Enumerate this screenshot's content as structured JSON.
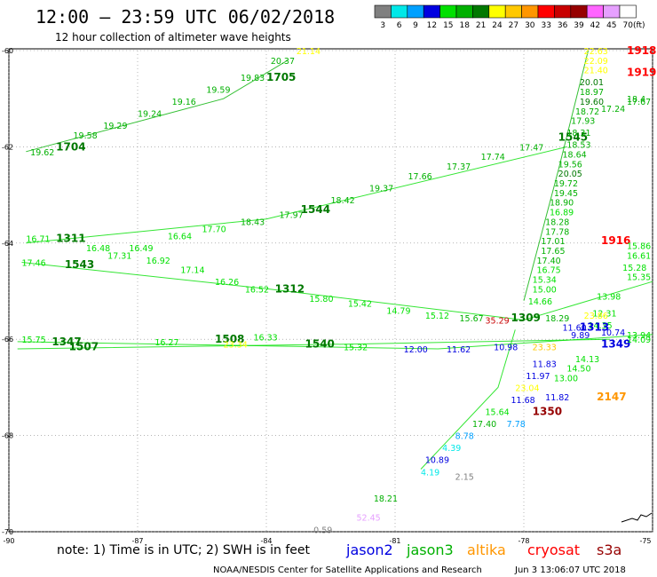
{
  "header": {
    "title": "12:00 – 23:59 UTC 06/02/2018",
    "subtitle": "12 hour collection of altimeter wave heights"
  },
  "legend": {
    "unit": "(ft)",
    "bins": [
      {
        "label": "3",
        "color": "#808080"
      },
      {
        "label": "6",
        "color": "#00e8e8"
      },
      {
        "label": "9",
        "color": "#00a0ff"
      },
      {
        "label": "12",
        "color": "#0000e0"
      },
      {
        "label": "15",
        "color": "#00e000"
      },
      {
        "label": "18",
        "color": "#00b000"
      },
      {
        "label": "21",
        "color": "#007800"
      },
      {
        "label": "24",
        "color": "#ffff00"
      },
      {
        "label": "27",
        "color": "#ffc800"
      },
      {
        "label": "30",
        "color": "#ff9600"
      },
      {
        "label": "33",
        "color": "#ff0000"
      },
      {
        "label": "36",
        "color": "#c80000"
      },
      {
        "label": "39",
        "color": "#960000"
      },
      {
        "label": "42",
        "color": "#ff64ff"
      },
      {
        "label": "45",
        "color": "#e6a0ff"
      },
      {
        "label": "70",
        "color": "#ffffff"
      }
    ]
  },
  "axes": {
    "lat_labels": [
      "-60",
      "-62",
      "-64",
      "-66",
      "-68",
      "-70"
    ],
    "lon_labels": [
      "-90",
      "-87",
      "-84",
      "-81",
      "-78",
      "-75"
    ]
  },
  "chart_data": {
    "type": "scatter",
    "region": {
      "lon_range": [
        -90,
        -75
      ],
      "lat_range": [
        -70,
        -60
      ]
    },
    "points": [
      {
        "lon": -89.5,
        "lat": -62.1,
        "label": "19.62",
        "color": "#00b000"
      },
      {
        "lon": -88.9,
        "lat": -62.0,
        "label": "1704",
        "color": "#007800",
        "bold": true
      },
      {
        "lon": -88.5,
        "lat": -61.75,
        "label": "19.58",
        "color": "#00b000"
      },
      {
        "lon": -87.8,
        "lat": -61.55,
        "label": "19.29",
        "color": "#00b000"
      },
      {
        "lon": -87.0,
        "lat": -61.3,
        "label": "19.24",
        "color": "#00b000"
      },
      {
        "lon": -86.2,
        "lat": -61.05,
        "label": "19.16",
        "color": "#00b000"
      },
      {
        "lon": -85.4,
        "lat": -60.8,
        "label": "19.59",
        "color": "#00b000"
      },
      {
        "lon": -84.6,
        "lat": -60.55,
        "label": "19.83",
        "color": "#00b000"
      },
      {
        "lon": -84.0,
        "lat": -60.55,
        "label": "1705",
        "color": "#007800",
        "bold": true
      },
      {
        "lon": -83.9,
        "lat": -60.2,
        "label": "20.37",
        "color": "#00b000"
      },
      {
        "lon": -83.3,
        "lat": -60.0,
        "label": "21.14",
        "color": "#ffff00"
      },
      {
        "lon": -89.6,
        "lat": -63.9,
        "label": "16.71",
        "color": "#00e000"
      },
      {
        "lon": -88.9,
        "lat": -63.9,
        "label": "1311",
        "color": "#007800",
        "bold": true
      },
      {
        "lon": -88.2,
        "lat": -64.1,
        "label": "16.48",
        "color": "#00e000"
      },
      {
        "lon": -87.2,
        "lat": -64.1,
        "label": "16.49",
        "color": "#00e000"
      },
      {
        "lon": -86.3,
        "lat": -63.85,
        "label": "16.64",
        "color": "#00e000"
      },
      {
        "lon": -85.5,
        "lat": -63.7,
        "label": "17.70",
        "color": "#00e000"
      },
      {
        "lon": -84.6,
        "lat": -63.55,
        "label": "18.43",
        "color": "#00b000"
      },
      {
        "lon": -83.7,
        "lat": -63.4,
        "label": "17.97",
        "color": "#00b000"
      },
      {
        "lon": -83.2,
        "lat": -63.3,
        "label": "1544",
        "color": "#007800",
        "bold": true
      },
      {
        "lon": -82.5,
        "lat": -63.1,
        "label": "18.42",
        "color": "#00b000"
      },
      {
        "lon": -81.6,
        "lat": -62.85,
        "label": "19.37",
        "color": "#00b000"
      },
      {
        "lon": -80.7,
        "lat": -62.6,
        "label": "17.66",
        "color": "#00b000"
      },
      {
        "lon": -79.8,
        "lat": -62.4,
        "label": "17.37",
        "color": "#00b000"
      },
      {
        "lon": -79.0,
        "lat": -62.2,
        "label": "17.74",
        "color": "#00b000"
      },
      {
        "lon": -78.1,
        "lat": -62.0,
        "label": "17.47",
        "color": "#00b000"
      },
      {
        "lon": -77.2,
        "lat": -61.8,
        "label": "1545",
        "color": "#007800",
        "bold": true
      },
      {
        "lon": -89.7,
        "lat": -64.4,
        "label": "17.46",
        "color": "#00e000"
      },
      {
        "lon": -88.7,
        "lat": -64.45,
        "label": "1543",
        "color": "#007800",
        "bold": true
      },
      {
        "lon": -87.7,
        "lat": -64.25,
        "label": "17.31",
        "color": "#00e000"
      },
      {
        "lon": -86.8,
        "lat": -64.35,
        "label": "16.92",
        "color": "#00e000"
      },
      {
        "lon": -86.0,
        "lat": -64.55,
        "label": "17.14",
        "color": "#00e000"
      },
      {
        "lon": -85.2,
        "lat": -64.8,
        "label": "16.26",
        "color": "#00e000"
      },
      {
        "lon": -84.5,
        "lat": -64.95,
        "label": "16.52",
        "color": "#00e000"
      },
      {
        "lon": -83.8,
        "lat": -64.95,
        "label": "1312",
        "color": "#007800",
        "bold": true
      },
      {
        "lon": -83.0,
        "lat": -65.15,
        "label": "15.80",
        "color": "#00e000"
      },
      {
        "lon": -82.1,
        "lat": -65.25,
        "label": "15.42",
        "color": "#00e000"
      },
      {
        "lon": -81.2,
        "lat": -65.4,
        "label": "14.79",
        "color": "#00e000"
      },
      {
        "lon": -80.3,
        "lat": -65.5,
        "label": "15.12",
        "color": "#00e000"
      },
      {
        "lon": -79.5,
        "lat": -65.55,
        "label": "15.67",
        "color": "#00b000"
      },
      {
        "lon": -78.9,
        "lat": -65.6,
        "label": "35.29",
        "color": "#c80000"
      },
      {
        "lon": -78.3,
        "lat": -65.55,
        "label": "1309",
        "color": "#007800",
        "bold": true
      },
      {
        "lon": -89.7,
        "lat": -66.0,
        "label": "15.75",
        "color": "#00e000"
      },
      {
        "lon": -89.0,
        "lat": -66.05,
        "label": "1347",
        "color": "#007800",
        "bold": true
      },
      {
        "lon": -88.6,
        "lat": -66.15,
        "label": "1507",
        "color": "#007800",
        "bold": true
      },
      {
        "lon": -86.6,
        "lat": -66.05,
        "label": "16.27",
        "color": "#00e000"
      },
      {
        "lon": -85.2,
        "lat": -66.0,
        "label": "1508",
        "color": "#007800",
        "bold": true
      },
      {
        "lon": -84.3,
        "lat": -65.95,
        "label": "16.33",
        "color": "#00e000"
      },
      {
        "lon": -83.1,
        "lat": -66.1,
        "label": "1540",
        "color": "#007800",
        "bold": true
      },
      {
        "lon": -82.2,
        "lat": -66.15,
        "label": "15.32",
        "color": "#00e000"
      },
      {
        "lon": -80.8,
        "lat": -66.2,
        "label": "12.00",
        "color": "#0000e0"
      },
      {
        "lon": -79.8,
        "lat": -66.2,
        "label": "11.62",
        "color": "#0000e0"
      },
      {
        "lon": -78.7,
        "lat": -66.15,
        "label": "10.98",
        "color": "#0000e0"
      },
      {
        "lon": -77.8,
        "lat": -66.15,
        "label": "23.33",
        "color": "#ffc800"
      },
      {
        "lon": -76.2,
        "lat": -66.1,
        "label": "1349",
        "color": "#0000e0",
        "bold": true
      },
      {
        "lon": -75.2,
        "lat": -66.0,
        "label": "14.09",
        "color": "#00e000"
      },
      {
        "lon": -85.0,
        "lat": -66.1,
        "label": "23.34",
        "color": "#ffff00"
      },
      {
        "lon": -76.6,
        "lat": -60.0,
        "label": "22.63",
        "color": "#ffff00"
      },
      {
        "lon": -76.6,
        "lat": -60.2,
        "label": "22.09",
        "color": "#ffff00"
      },
      {
        "lon": -76.6,
        "lat": -60.4,
        "label": "21.40",
        "color": "#ffff00"
      },
      {
        "lon": -76.7,
        "lat": -60.65,
        "label": "20.01",
        "color": "#007800"
      },
      {
        "lon": -76.7,
        "lat": -60.85,
        "label": "18.97",
        "color": "#00b000"
      },
      {
        "lon": -76.7,
        "lat": -61.05,
        "label": "19.60",
        "color": "#007800"
      },
      {
        "lon": -76.8,
        "lat": -61.25,
        "label": "18.72",
        "color": "#00b000"
      },
      {
        "lon": -76.9,
        "lat": -61.45,
        "label": "17.93",
        "color": "#00b000"
      },
      {
        "lon": -77.0,
        "lat": -61.7,
        "label": "18.31",
        "color": "#00b000"
      },
      {
        "lon": -77.0,
        "lat": -61.95,
        "label": "18.53",
        "color": "#00b000"
      },
      {
        "lon": -77.1,
        "lat": -62.15,
        "label": "18.64",
        "color": "#00b000"
      },
      {
        "lon": -77.2,
        "lat": -62.35,
        "label": "19.56",
        "color": "#00b000"
      },
      {
        "lon": -77.2,
        "lat": -62.55,
        "label": "20.05",
        "color": "#007800"
      },
      {
        "lon": -77.3,
        "lat": -62.75,
        "label": "19.72",
        "color": "#00b000"
      },
      {
        "lon": -77.3,
        "lat": -62.95,
        "label": "19.45",
        "color": "#00b000"
      },
      {
        "lon": -77.4,
        "lat": -63.15,
        "label": "18.90",
        "color": "#00b000"
      },
      {
        "lon": -77.4,
        "lat": -63.35,
        "label": "16.89",
        "color": "#00e000"
      },
      {
        "lon": -77.5,
        "lat": -63.55,
        "label": "18.28",
        "color": "#00b000"
      },
      {
        "lon": -77.5,
        "lat": -63.75,
        "label": "17.78",
        "color": "#00b000"
      },
      {
        "lon": -77.6,
        "lat": -63.95,
        "label": "17.01",
        "color": "#00b000"
      },
      {
        "lon": -77.6,
        "lat": -64.15,
        "label": "17.65",
        "color": "#00b000"
      },
      {
        "lon": -77.7,
        "lat": -64.35,
        "label": "17.40",
        "color": "#00b000"
      },
      {
        "lon": -77.7,
        "lat": -64.55,
        "label": "16.75",
        "color": "#00e000"
      },
      {
        "lon": -77.8,
        "lat": -64.75,
        "label": "15.34",
        "color": "#00e000"
      },
      {
        "lon": -77.8,
        "lat": -64.95,
        "label": "15.00",
        "color": "#00e000"
      },
      {
        "lon": -77.9,
        "lat": -65.2,
        "label": "14.66",
        "color": "#00e000"
      },
      {
        "lon": -77.5,
        "lat": -65.55,
        "label": "18.29",
        "color": "#00b000"
      },
      {
        "lon": -77.1,
        "lat": -65.75,
        "label": "11.60",
        "color": "#0000e0"
      },
      {
        "lon": -77.8,
        "lat": -66.5,
        "label": "11.83",
        "color": "#0000e0"
      },
      {
        "lon": -77.95,
        "lat": -66.75,
        "label": "11.97",
        "color": "#0000e0"
      },
      {
        "lon": -78.2,
        "lat": -67.0,
        "label": "23.04",
        "color": "#ffff00"
      },
      {
        "lon": -78.3,
        "lat": -67.25,
        "label": "11.68",
        "color": "#0000e0"
      },
      {
        "lon": -77.3,
        "lat": -66.8,
        "label": "13.00",
        "color": "#00e000"
      },
      {
        "lon": -77.0,
        "lat": -66.6,
        "label": "14.50",
        "color": "#00e000"
      },
      {
        "lon": -76.8,
        "lat": -66.4,
        "label": "14.13",
        "color": "#00e000"
      },
      {
        "lon": -77.5,
        "lat": -67.2,
        "label": "11.82",
        "color": "#0000e0"
      },
      {
        "lon": -76.3,
        "lat": -67.2,
        "label": "2147",
        "color": "#ff9600",
        "bold": true
      },
      {
        "lon": -78.9,
        "lat": -67.5,
        "label": "15.64",
        "color": "#00e000"
      },
      {
        "lon": -77.8,
        "lat": -67.5,
        "label": "1350",
        "color": "#960000",
        "bold": true
      },
      {
        "lon": -79.2,
        "lat": -67.75,
        "label": "17.40",
        "color": "#00b000"
      },
      {
        "lon": -78.4,
        "lat": -67.75,
        "label": "7.78",
        "color": "#00a0ff"
      },
      {
        "lon": -79.6,
        "lat": -68.0,
        "label": "8.78",
        "color": "#00a0ff"
      },
      {
        "lon": -79.9,
        "lat": -68.25,
        "label": "4.39",
        "color": "#00e8e8"
      },
      {
        "lon": -80.3,
        "lat": -68.5,
        "label": "10.89",
        "color": "#0000e0"
      },
      {
        "lon": -80.4,
        "lat": -68.75,
        "label": "4.19",
        "color": "#00e8e8"
      },
      {
        "lon": -79.6,
        "lat": -68.85,
        "label": "2.15",
        "color": "#808080"
      },
      {
        "lon": -81.5,
        "lat": -69.3,
        "label": "18.21",
        "color": "#00b000"
      },
      {
        "lon": -81.9,
        "lat": -69.7,
        "label": "52.45",
        "color": "#e6a0ff"
      },
      {
        "lon": -82.9,
        "lat": -69.95,
        "label": "0.59",
        "color": "#808080"
      },
      {
        "lon": -76.2,
        "lat": -63.95,
        "label": "1916",
        "color": "#ff0000",
        "bold": true
      },
      {
        "lon": -75.4,
        "lat": -60.0,
        "label": "1918",
        "color": "#ff0000",
        "bold": true
      },
      {
        "lon": -75.3,
        "lat": -60.45,
        "label": "1919",
        "color": "#ff0000",
        "bold": true
      },
      {
        "lon": -75.6,
        "lat": -61.05,
        "label": "17.67",
        "color": "#00b000"
      },
      {
        "lon": -76.2,
        "lat": -61.2,
        "label": "17.24",
        "color": "#00b000"
      },
      {
        "lon": -75.2,
        "lat": -61.0,
        "label": "18.4",
        "color": "#00b000"
      },
      {
        "lon": -75.3,
        "lat": -64.05,
        "label": "15.86",
        "color": "#00e000"
      },
      {
        "lon": -75.5,
        "lat": -64.25,
        "label": "16.61",
        "color": "#00e000"
      },
      {
        "lon": -75.7,
        "lat": -64.5,
        "label": "15.28",
        "color": "#00e000"
      },
      {
        "lon": -75.3,
        "lat": -64.7,
        "label": "15.35",
        "color": "#00e000"
      },
      {
        "lon": -76.3,
        "lat": -65.1,
        "label": "13.98",
        "color": "#00e000"
      },
      {
        "lon": -76.4,
        "lat": -65.45,
        "label": "12.31",
        "color": "#00e000"
      },
      {
        "lon": -76.5,
        "lat": -65.7,
        "label": "14.35",
        "color": "#00e000"
      },
      {
        "lon": -76.2,
        "lat": -65.85,
        "label": "10.74",
        "color": "#0000e0"
      },
      {
        "lon": -75.6,
        "lat": -65.9,
        "label": "13.94",
        "color": "#00e000"
      },
      {
        "lon": -76.6,
        "lat": -65.5,
        "label": "23.86",
        "color": "#ffff00"
      },
      {
        "lon": -76.9,
        "lat": -65.9,
        "label": "9.89",
        "color": "#0000e0"
      },
      {
        "lon": -76.7,
        "lat": -65.75,
        "label": "1313",
        "color": "#0000e0",
        "bold": true
      }
    ]
  },
  "tracks": [
    {
      "color": "#00b000",
      "points": [
        [
          -89.6,
          -62.1
        ],
        [
          -85,
          -61
        ],
        [
          -83.5,
          -60.2
        ]
      ]
    },
    {
      "color": "#00e000",
      "points": [
        [
          -89.6,
          -64.0
        ],
        [
          -84,
          -63.5
        ],
        [
          -77,
          -62.0
        ]
      ]
    },
    {
      "color": "#00e000",
      "points": [
        [
          -89.7,
          -64.4
        ],
        [
          -84,
          -64.95
        ],
        [
          -78,
          -65.6
        ],
        [
          -75,
          -64.8
        ]
      ]
    },
    {
      "color": "#00e000",
      "points": [
        [
          -89.8,
          -66.05
        ],
        [
          -80,
          -66.2
        ],
        [
          -75,
          -65.9
        ]
      ]
    },
    {
      "color": "#00e000",
      "points": [
        [
          -89.8,
          -66.2
        ],
        [
          -82,
          -66.1
        ],
        [
          -76,
          -66.0
        ]
      ]
    },
    {
      "color": "#00b000",
      "points": [
        [
          -76.5,
          -60.0
        ],
        [
          -77.2,
          -62.5
        ],
        [
          -78,
          -65.2
        ]
      ]
    },
    {
      "color": "#00e000",
      "points": [
        [
          -78.2,
          -65.8
        ],
        [
          -78.6,
          -67.0
        ],
        [
          -80.4,
          -68.7
        ]
      ]
    }
  ],
  "footer": {
    "note": "note: 1) Time is in UTC; 2) SWH is in feet",
    "satellites": [
      {
        "name": "jason2",
        "color": "#0000e0"
      },
      {
        "name": "jason3",
        "color": "#00b000"
      },
      {
        "name": "altika",
        "color": "#ff9600"
      },
      {
        "name": "cryosat",
        "color": "#ff0000"
      },
      {
        "name": "s3a",
        "color": "#960000"
      }
    ],
    "credit": "NOAA/NESDIS Center for Satellite Applications and Research",
    "timestamp": "Jun  3 13:06:07 UTC 2018"
  }
}
